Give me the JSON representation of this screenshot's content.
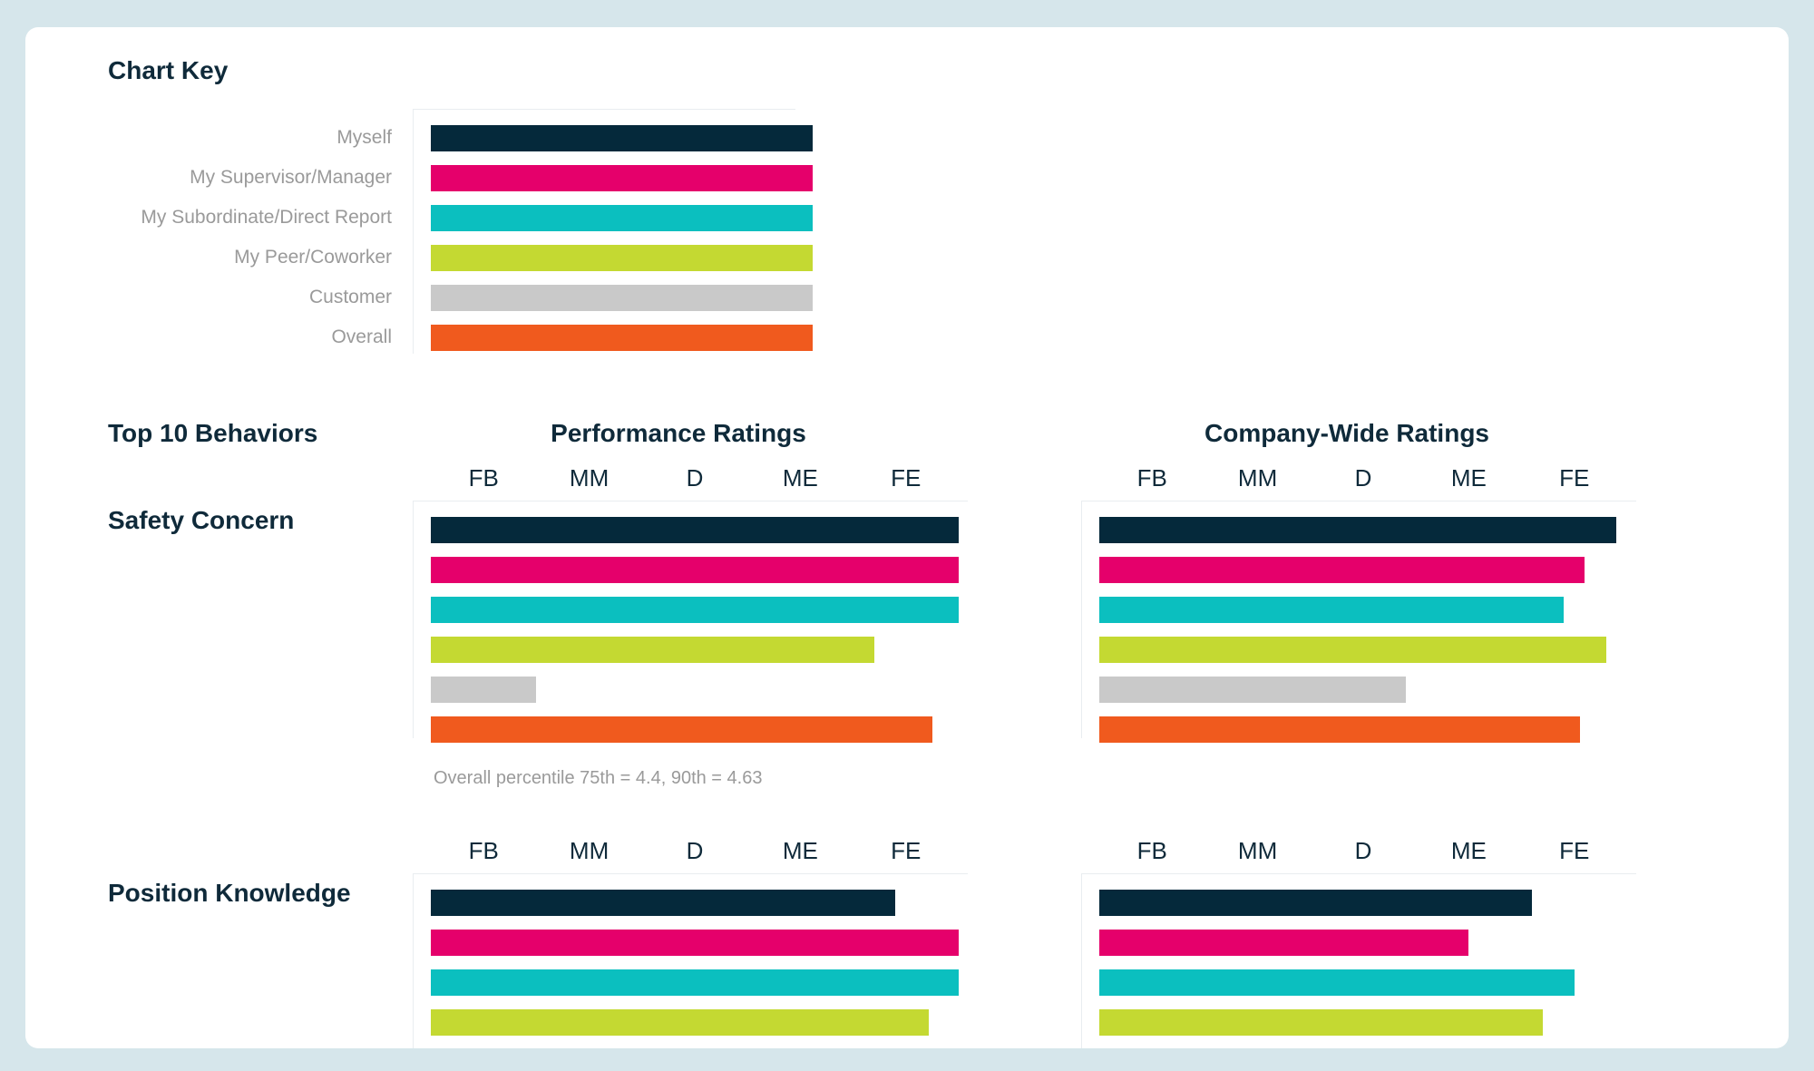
{
  "page": {
    "chart_key_title": "Chart Key",
    "top10_title": "Top 10 Behaviors",
    "performance_title": "Performance Ratings",
    "company_title": "Company-Wide Ratings"
  },
  "colors": {
    "Myself": "#05293b",
    "My Supervisor/Manager": "#e5006b",
    "My Subordinate/Direct Report": "#0bbfbf",
    "My Peer/Coworker": "#c4d932",
    "Customer": "#c9c9c9",
    "Overall": "#f05a1e"
  },
  "key": {
    "labels": [
      "Myself",
      "My Supervisor/Manager",
      "My Subordinate/Direct Report",
      "My Peer/Coworker",
      "Customer",
      "Overall"
    ]
  },
  "chart_data": [
    {
      "type": "bar",
      "orientation": "horizontal",
      "behavior": "Safety Concern",
      "panel": "Performance Ratings",
      "x_ticks": [
        "FB",
        "MM",
        "D",
        "ME",
        "FE"
      ],
      "x_tick_values": [
        1,
        2,
        3,
        4,
        5
      ],
      "xlim": [
        0.5,
        5.5
      ],
      "series": [
        {
          "name": "Myself",
          "value": 5.5
        },
        {
          "name": "My Supervisor/Manager",
          "value": 5.5
        },
        {
          "name": "My Subordinate/Direct Report",
          "value": 5.5
        },
        {
          "name": "My Peer/Coworker",
          "value": 4.7
        },
        {
          "name": "Customer",
          "value": 1.5
        },
        {
          "name": "Overall",
          "value": 5.25
        }
      ],
      "note": "Overall percentile 75th = 4.4, 90th = 4.63"
    },
    {
      "type": "bar",
      "orientation": "horizontal",
      "behavior": "Safety Concern",
      "panel": "Company-Wide Ratings",
      "x_ticks": [
        "FB",
        "MM",
        "D",
        "ME",
        "FE"
      ],
      "x_tick_values": [
        1,
        2,
        3,
        4,
        5
      ],
      "xlim": [
        0.5,
        5.5
      ],
      "series": [
        {
          "name": "Myself",
          "value": 5.4
        },
        {
          "name": "My Supervisor/Manager",
          "value": 5.1
        },
        {
          "name": "My Subordinate/Direct Report",
          "value": 4.9
        },
        {
          "name": "My Peer/Coworker",
          "value": 5.3
        },
        {
          "name": "Customer",
          "value": 3.4
        },
        {
          "name": "Overall",
          "value": 5.05
        }
      ]
    },
    {
      "type": "bar",
      "orientation": "horizontal",
      "behavior": "Position Knowledge",
      "panel": "Performance Ratings",
      "x_ticks": [
        "FB",
        "MM",
        "D",
        "ME",
        "FE"
      ],
      "x_tick_values": [
        1,
        2,
        3,
        4,
        5
      ],
      "xlim": [
        0.5,
        5.5
      ],
      "series": [
        {
          "name": "Myself",
          "value": 4.9
        },
        {
          "name": "My Supervisor/Manager",
          "value": 5.5
        },
        {
          "name": "My Subordinate/Direct Report",
          "value": 5.5
        },
        {
          "name": "My Peer/Coworker",
          "value": 5.22
        }
      ]
    },
    {
      "type": "bar",
      "orientation": "horizontal",
      "behavior": "Position Knowledge",
      "panel": "Company-Wide Ratings",
      "x_ticks": [
        "FB",
        "MM",
        "D",
        "ME",
        "FE"
      ],
      "x_tick_values": [
        1,
        2,
        3,
        4,
        5
      ],
      "xlim": [
        0.5,
        5.5
      ],
      "series": [
        {
          "name": "Myself",
          "value": 4.6
        },
        {
          "name": "My Supervisor/Manager",
          "value": 4.0
        },
        {
          "name": "My Subordinate/Direct Report",
          "value": 5.0
        },
        {
          "name": "My Peer/Coworker",
          "value": 4.7
        }
      ]
    }
  ]
}
